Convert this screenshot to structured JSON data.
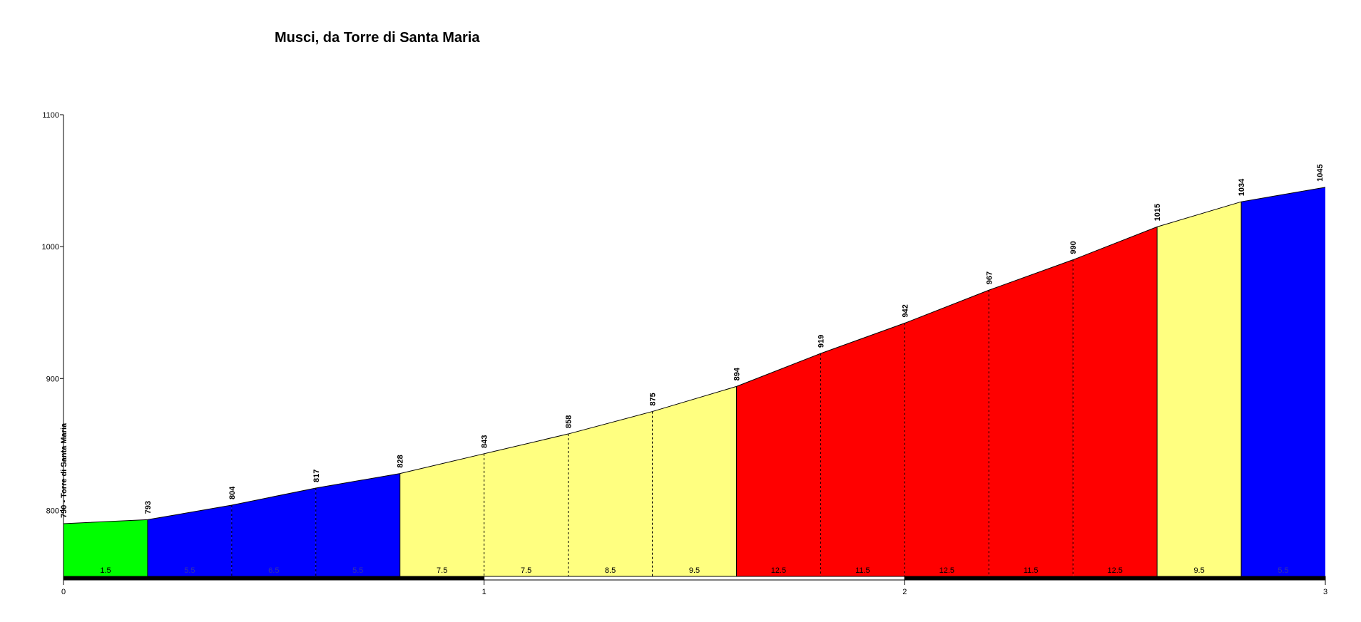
{
  "chart_data": {
    "type": "area",
    "title": "Musci, da Torre di Santa Maria",
    "xlabel": "",
    "ylabel": "",
    "xlim": [
      0,
      3
    ],
    "ylim": [
      750,
      1100
    ],
    "x_ticks": [
      0,
      1,
      2,
      3
    ],
    "y_ticks": [
      800,
      900,
      1000,
      1100
    ],
    "start_label": "790 - Torre di Santa Maria",
    "points": [
      {
        "x": 0.0,
        "y": 790
      },
      {
        "x": 0.2,
        "y": 793
      },
      {
        "x": 0.4,
        "y": 804
      },
      {
        "x": 0.6,
        "y": 817
      },
      {
        "x": 0.8,
        "y": 828
      },
      {
        "x": 1.0,
        "y": 843
      },
      {
        "x": 1.2,
        "y": 858
      },
      {
        "x": 1.4,
        "y": 875
      },
      {
        "x": 1.6,
        "y": 894
      },
      {
        "x": 1.8,
        "y": 919
      },
      {
        "x": 2.0,
        "y": 942
      },
      {
        "x": 2.2,
        "y": 967
      },
      {
        "x": 2.4,
        "y": 990
      },
      {
        "x": 2.6,
        "y": 1015
      },
      {
        "x": 2.8,
        "y": 1034
      },
      {
        "x": 3.0,
        "y": 1045
      }
    ],
    "segments": [
      {
        "gradient": "1.5",
        "color": "#00ff00"
      },
      {
        "gradient": "5.5",
        "color": "#0000ff"
      },
      {
        "gradient": "6.5",
        "color": "#0000ff"
      },
      {
        "gradient": "5.5",
        "color": "#0000ff"
      },
      {
        "gradient": "7.5",
        "color": "#ffff80"
      },
      {
        "gradient": "7.5",
        "color": "#ffff80"
      },
      {
        "gradient": "8.5",
        "color": "#ffff80"
      },
      {
        "gradient": "9.5",
        "color": "#ffff80"
      },
      {
        "gradient": "12.5",
        "color": "#ff0000"
      },
      {
        "gradient": "11.5",
        "color": "#ff0000"
      },
      {
        "gradient": "12.5",
        "color": "#ff0000"
      },
      {
        "gradient": "11.5",
        "color": "#ff0000"
      },
      {
        "gradient": "12.5",
        "color": "#ff0000"
      },
      {
        "gradient": "9.5",
        "color": "#ffff80"
      },
      {
        "gradient": "5.5",
        "color": "#0000ff"
      }
    ],
    "grid": false,
    "legend": "none"
  }
}
